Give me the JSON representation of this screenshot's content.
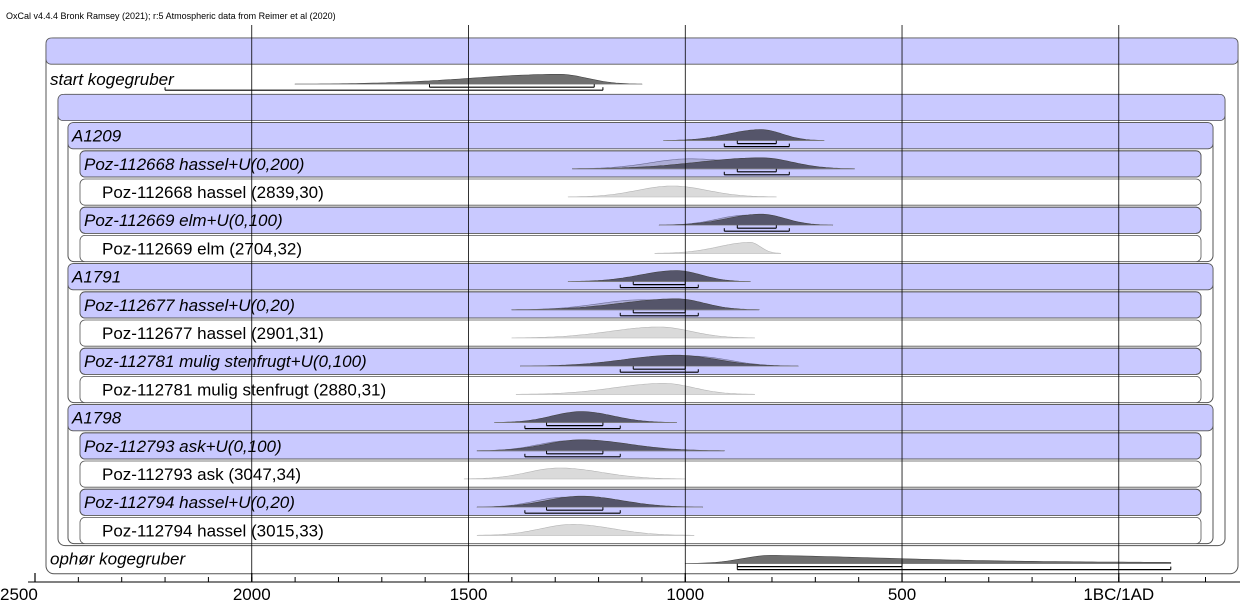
{
  "header": {
    "credit": "OxCal v4.4.4 Bronk Ramsey (2021); r:5 Atmospheric data from Reimer et al (2020)"
  },
  "colors": {
    "band": "#c9c9ff",
    "posterior": "#55556a",
    "posterior_light": "#9d9dc0",
    "likelihood": "#dadada",
    "boundary": "#6f6f6f",
    "frame": "#555555",
    "grid": "#000000"
  },
  "chart_data": {
    "type": "oxcal-multiplot",
    "x_axis": {
      "unit": "BC",
      "range": [
        2500,
        -275
      ],
      "ticks": [
        {
          "value": 2500,
          "label": "2500"
        },
        {
          "value": 2000,
          "label": "2000"
        },
        {
          "value": 1500,
          "label": "1500"
        },
        {
          "value": 1000,
          "label": "1000"
        },
        {
          "value": 500,
          "label": "500"
        },
        {
          "value": 0,
          "label": "1BC/1AD"
        }
      ],
      "minor_step": 100,
      "grid_at": [
        2000,
        1500,
        1000,
        500,
        0
      ]
    },
    "rows": [
      {
        "label": "",
        "level": 0,
        "style": "band"
      },
      {
        "label": "start kogegruber",
        "level": 0,
        "style": "boundary-plain",
        "dist": {
          "from": 1900,
          "to": 1100,
          "peak": 1290,
          "height": 0.9
        },
        "ranges": [
          [
            2200,
            1190
          ],
          [
            1590,
            1210
          ]
        ]
      },
      {
        "label": "",
        "level": 1,
        "style": "band"
      },
      {
        "label": "A1209",
        "level": 2,
        "style": "group",
        "dist": {
          "from": 1050,
          "to": 680,
          "peak": 825,
          "height": 1
        },
        "ranges": [
          [
            910,
            760
          ],
          [
            880,
            790
          ]
        ]
      },
      {
        "label": "Poz-112668 hassel+U(0,200)",
        "level": 3,
        "style": "item",
        "dist": {
          "from": 1260,
          "to": 610,
          "peak": 825,
          "height": 1
        },
        "ranges": [
          [
            910,
            760
          ],
          [
            880,
            790
          ]
        ],
        "light": {
          "from": 1260,
          "to": 610,
          "peak": 990
        }
      },
      {
        "label": "Poz-112668 hassel (2839,30)",
        "level": 3,
        "style": "plain",
        "like": {
          "from": 1270,
          "to": 790,
          "peak": 1030
        }
      },
      {
        "label": "Poz-112669 elm+U(0,100)",
        "level": 3,
        "style": "item",
        "dist": {
          "from": 1060,
          "to": 660,
          "peak": 825,
          "height": 1
        },
        "ranges": [
          [
            910,
            760
          ],
          [
            880,
            790
          ]
        ],
        "light": {
          "from": 1060,
          "to": 660,
          "peak": 860
        }
      },
      {
        "label": "Poz-112669 elm (2704,32)",
        "level": 3,
        "style": "plain",
        "like": {
          "from": 1070,
          "to": 780,
          "peak": 850
        }
      },
      {
        "label": "A1791",
        "level": 2,
        "style": "group",
        "dist": {
          "from": 1270,
          "to": 850,
          "peak": 1020,
          "height": 1
        },
        "ranges": [
          [
            1150,
            970
          ],
          [
            1120,
            1000
          ]
        ]
      },
      {
        "label": "Poz-112677 hassel+U(0,20)",
        "level": 3,
        "style": "item",
        "dist": {
          "from": 1400,
          "to": 830,
          "peak": 1020,
          "height": 1
        },
        "ranges": [
          [
            1150,
            970
          ],
          [
            1120,
            1000
          ]
        ],
        "light": {
          "from": 1400,
          "to": 830,
          "peak": 1100
        }
      },
      {
        "label": "Poz-112677 hassel (2901,31)",
        "level": 3,
        "style": "plain",
        "like": {
          "from": 1400,
          "to": 840,
          "peak": 1060
        }
      },
      {
        "label": "Poz-112781 mulig stenfrugt+U(0,100)",
        "level": 3,
        "style": "item",
        "dist": {
          "from": 1380,
          "to": 740,
          "peak": 1020,
          "height": 1
        },
        "ranges": [
          [
            1150,
            970
          ],
          [
            1120,
            1000
          ]
        ],
        "light": {
          "from": 1380,
          "to": 740,
          "peak": 980
        }
      },
      {
        "label": "Poz-112781 mulig stenfrugt (2880,31)",
        "level": 3,
        "style": "plain",
        "like": {
          "from": 1390,
          "to": 840,
          "peak": 1050
        }
      },
      {
        "label": "A1798",
        "level": 2,
        "style": "group",
        "dist": {
          "from": 1440,
          "to": 1020,
          "peak": 1240,
          "height": 1
        },
        "ranges": [
          [
            1370,
            1150
          ],
          [
            1320,
            1190
          ]
        ]
      },
      {
        "label": "Poz-112793 ask+U(0,100)",
        "level": 3,
        "style": "item",
        "dist": {
          "from": 1480,
          "to": 910,
          "peak": 1240,
          "height": 1
        },
        "ranges": [
          [
            1370,
            1150
          ],
          [
            1320,
            1190
          ]
        ],
        "light": {
          "from": 1480,
          "to": 910,
          "peak": 1270
        }
      },
      {
        "label": "Poz-112793 ask (3047,34)",
        "level": 3,
        "style": "plain",
        "like": {
          "from": 1510,
          "to": 1000,
          "peak": 1290
        }
      },
      {
        "label": "Poz-112794 hassel+U(0,20)",
        "level": 3,
        "style": "item",
        "dist": {
          "from": 1480,
          "to": 960,
          "peak": 1240,
          "height": 1
        },
        "ranges": [
          [
            1370,
            1150
          ],
          [
            1320,
            1190
          ]
        ],
        "light": {
          "from": 1480,
          "to": 960,
          "peak": 1280
        }
      },
      {
        "label": "Poz-112794 hassel (3015,33)",
        "level": 3,
        "style": "plain",
        "like": {
          "from": 1480,
          "to": 980,
          "peak": 1260
        }
      },
      {
        "label": "ophør kogegruber",
        "level": 0,
        "style": "boundary-plain",
        "dist": {
          "from": 1000,
          "to": -120,
          "peak": 800,
          "height": 0.75,
          "tail": true
        },
        "ranges": [
          [
            880,
            -120
          ],
          [
            880,
            500
          ]
        ]
      }
    ]
  }
}
